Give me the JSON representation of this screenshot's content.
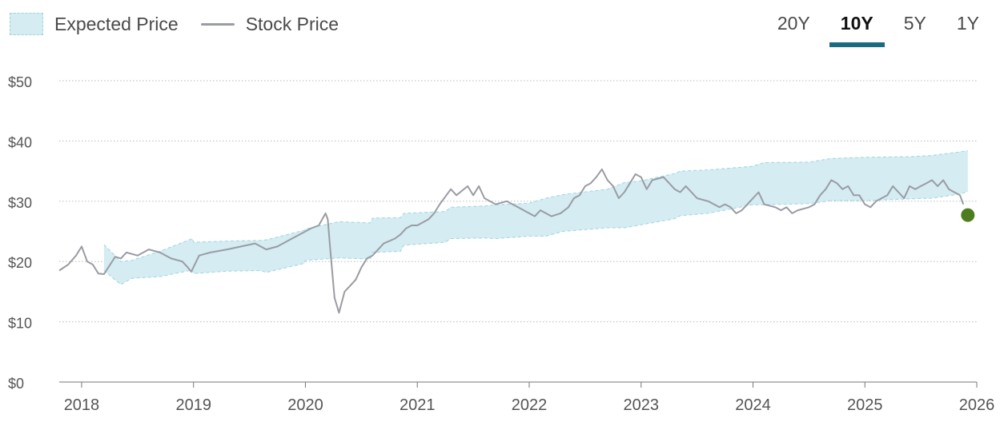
{
  "legend": {
    "expected_label": "Expected Price",
    "stock_label": "Stock Price"
  },
  "range_tabs": [
    {
      "label": "20Y",
      "active": false
    },
    {
      "label": "10Y",
      "active": true
    },
    {
      "label": "5Y",
      "active": false
    },
    {
      "label": "1Y",
      "active": false
    }
  ],
  "colors": {
    "band_fill": "#d4ecf2",
    "band_edge": "#9fd4e0",
    "stock_line": "#9a9ca3",
    "current_point": "#4e7d1f",
    "active_tab": "#1a6a80",
    "grid": "#bdbdbd"
  },
  "chart_data": {
    "type": "area",
    "title": "",
    "xlabel": "",
    "ylabel": "",
    "xlim": [
      2017.8,
      2026.0
    ],
    "ylim": [
      0,
      50
    ],
    "y_ticks": [
      0,
      10,
      20,
      30,
      40,
      50
    ],
    "y_tick_labels": [
      "$0",
      "$10",
      "$20",
      "$30",
      "$40",
      "$50"
    ],
    "x_ticks": [
      2018,
      2019,
      2020,
      2021,
      2022,
      2023,
      2024,
      2025,
      2026
    ],
    "x_tick_labels": [
      "2018",
      "2019",
      "2020",
      "2021",
      "2022",
      "2023",
      "2024",
      "2025",
      "2026"
    ],
    "grid": "horizontal dotted",
    "series": [
      {
        "name": "Expected Price",
        "kind": "band",
        "x": [
          2018.2,
          2018.35,
          2018.45,
          2018.7,
          2018.99,
          2019.0,
          2019.3,
          2019.6,
          2019.65,
          2019.99,
          2020.0,
          2020.3,
          2020.58,
          2020.6,
          2020.85,
          2020.88,
          2021.25,
          2021.3,
          2021.6,
          2021.7,
          2022.0,
          2022.15,
          2022.3,
          2022.7,
          2022.85,
          2023.0,
          2023.3,
          2023.35,
          2023.6,
          2023.99,
          2024.1,
          2024.5,
          2024.7,
          2025.0,
          2025.4,
          2025.6,
          2025.85,
          2025.92
        ],
        "upper": [
          22.8,
          20.0,
          20.2,
          21.7,
          23.8,
          23.2,
          23.4,
          23.5,
          23.6,
          25.2,
          25.4,
          26.6,
          26.4,
          27.2,
          27.3,
          28.0,
          28.3,
          29.0,
          29.2,
          29.4,
          29.7,
          30.5,
          31.1,
          32.0,
          33.1,
          33.4,
          34.6,
          35.0,
          35.2,
          35.8,
          36.4,
          36.5,
          37.1,
          37.3,
          37.4,
          37.6,
          38.2,
          38.4
        ],
        "lower": [
          18.5,
          16.2,
          17.2,
          17.5,
          18.6,
          18.0,
          18.4,
          18.5,
          18.2,
          19.7,
          20.2,
          20.6,
          20.4,
          21.5,
          21.7,
          22.7,
          23.2,
          23.8,
          23.9,
          23.8,
          24.2,
          24.2,
          25.0,
          25.6,
          25.6,
          26.1,
          27.1,
          27.6,
          28.0,
          29.4,
          29.4,
          29.6,
          30.1,
          30.1,
          30.4,
          30.5,
          31.2,
          31.6
        ]
      },
      {
        "name": "Stock Price",
        "kind": "line",
        "x": [
          2017.8,
          2017.88,
          2017.95,
          2018.0,
          2018.05,
          2018.1,
          2018.15,
          2018.2,
          2018.3,
          2018.35,
          2018.4,
          2018.5,
          2018.6,
          2018.7,
          2018.8,
          2018.9,
          2018.95,
          2018.98,
          2019.05,
          2019.15,
          2019.3,
          2019.45,
          2019.55,
          2019.65,
          2019.75,
          2019.85,
          2019.95,
          2020.05,
          2020.12,
          2020.15,
          2020.18,
          2020.2,
          2020.22,
          2020.26,
          2020.3,
          2020.35,
          2020.4,
          2020.45,
          2020.5,
          2020.55,
          2020.6,
          2020.7,
          2020.8,
          2020.85,
          2020.9,
          2020.95,
          2021.0,
          2021.1,
          2021.15,
          2021.2,
          2021.3,
          2021.35,
          2021.45,
          2021.5,
          2021.55,
          2021.6,
          2021.7,
          2021.8,
          2021.9,
          2022.0,
          2022.05,
          2022.1,
          2022.15,
          2022.2,
          2022.28,
          2022.35,
          2022.4,
          2022.45,
          2022.5,
          2022.55,
          2022.6,
          2022.65,
          2022.7,
          2022.75,
          2022.8,
          2022.85,
          2022.9,
          2022.95,
          2023.0,
          2023.05,
          2023.1,
          2023.2,
          2023.3,
          2023.35,
          2023.4,
          2023.5,
          2023.6,
          2023.7,
          2023.75,
          2023.8,
          2023.85,
          2023.9,
          2023.95,
          2024.0,
          2024.05,
          2024.1,
          2024.2,
          2024.25,
          2024.3,
          2024.35,
          2024.4,
          2024.5,
          2024.55,
          2024.6,
          2024.65,
          2024.7,
          2024.75,
          2024.8,
          2024.85,
          2024.9,
          2024.95,
          2025.0,
          2025.05,
          2025.1,
          2025.15,
          2025.2,
          2025.25,
          2025.3,
          2025.35,
          2025.4,
          2025.45,
          2025.5,
          2025.55,
          2025.6,
          2025.65,
          2025.7,
          2025.75,
          2025.8,
          2025.85,
          2025.88
        ],
        "y": [
          18.5,
          19.5,
          21.0,
          22.5,
          20.0,
          19.5,
          18.0,
          17.9,
          20.8,
          20.5,
          21.5,
          21.0,
          22.0,
          21.5,
          20.5,
          20.0,
          19.0,
          18.3,
          21.0,
          21.5,
          22.0,
          22.6,
          23.0,
          22.0,
          22.5,
          23.5,
          24.5,
          25.5,
          26.0,
          27.0,
          28.0,
          27.0,
          22.5,
          14.0,
          11.5,
          15.0,
          16.0,
          17.0,
          19.0,
          20.5,
          21.0,
          23.0,
          23.8,
          24.5,
          25.5,
          26.0,
          26.0,
          27.0,
          28.0,
          29.5,
          32.0,
          31.0,
          32.5,
          31.0,
          32.5,
          30.5,
          29.5,
          30.0,
          29.0,
          28.0,
          27.5,
          28.5,
          28.0,
          27.5,
          28.0,
          29.0,
          30.5,
          31.0,
          32.5,
          33.0,
          34.0,
          35.3,
          33.5,
          32.5,
          30.5,
          31.5,
          33.0,
          34.5,
          34.0,
          32.0,
          33.5,
          34.0,
          32.0,
          31.5,
          32.5,
          30.5,
          30.0,
          29.0,
          29.5,
          29.0,
          28.0,
          28.5,
          29.5,
          30.5,
          31.5,
          29.5,
          29.0,
          28.5,
          29.0,
          28.0,
          28.5,
          29.0,
          29.5,
          31.0,
          32.0,
          33.5,
          33.0,
          32.0,
          32.5,
          31.0,
          31.0,
          29.5,
          29.0,
          30.0,
          30.5,
          31.0,
          32.5,
          31.5,
          30.5,
          32.5,
          32.0,
          32.5,
          33.0,
          33.5,
          32.5,
          33.5,
          32.0,
          31.5,
          31.0,
          29.5
        ]
      },
      {
        "name": "Current Price",
        "kind": "point",
        "x": 2025.92,
        "y": 27.7
      }
    ]
  }
}
